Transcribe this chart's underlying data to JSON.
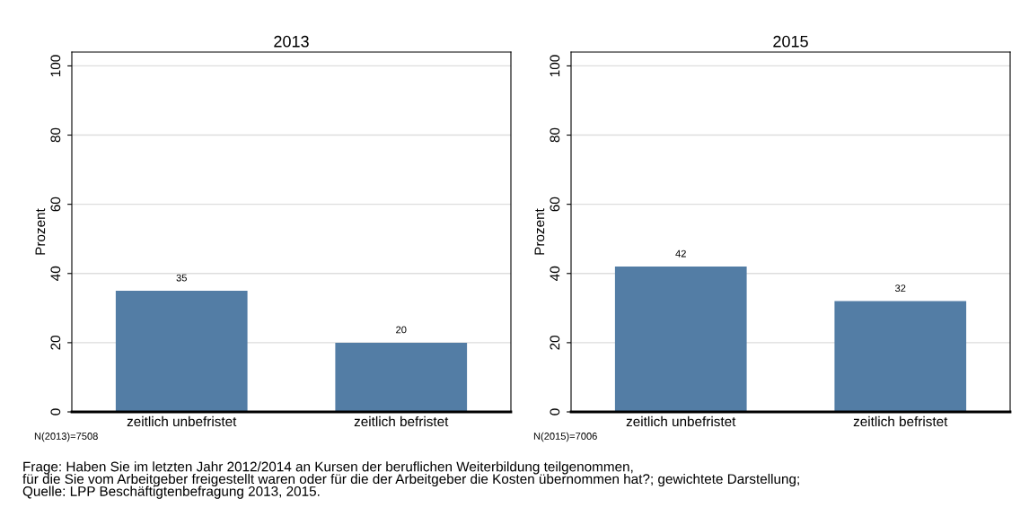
{
  "chart_data": [
    {
      "type": "bar",
      "title": "2013",
      "ylabel": "Prozent",
      "categories": [
        "zeitlich unbefristet",
        "zeitlich befristet"
      ],
      "values": [
        35,
        20
      ],
      "color": "#537da5",
      "ylim": [
        0,
        104
      ],
      "yticks": [
        0,
        20,
        40,
        60,
        80,
        100
      ],
      "grid": "y",
      "data_labels": true,
      "annotations": [
        "N(2013)=7508"
      ]
    },
    {
      "type": "bar",
      "title": "2015",
      "ylabel": "Prozent",
      "categories": [
        "zeitlich unbefristet",
        "zeitlich befristet"
      ],
      "values": [
        42,
        32
      ],
      "color": "#537da5",
      "ylim": [
        0,
        104
      ],
      "yticks": [
        0,
        20,
        40,
        60,
        80,
        100
      ],
      "grid": "y",
      "data_labels": true,
      "annotations": [
        "N(2015)=7006",
        "Frage: Haben Sie im letzten Jahr 2012/2014 an Kursen der beruflichen Weiterbildung teilgenommen,\nfür die Sie vom Arbeitgeber freigestellt waren oder für die der Arbeitgeber die Kosten übernommen hat?; gewichtete Darstellung;\nQuelle: LPP Beschäftigtenbefragung 2013, 2015."
      ]
    }
  ]
}
